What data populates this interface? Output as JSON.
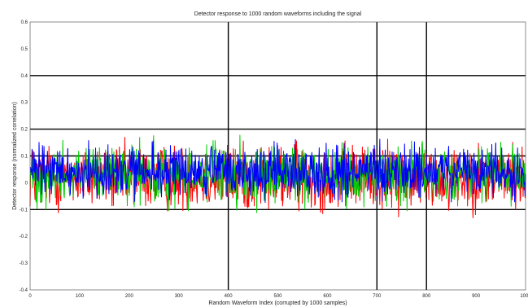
{
  "chart_data": {
    "type": "line",
    "title": "Detector response to 1000 random waveforms including the signal",
    "xlabel": "Random Waveform Index (corrupted by 1000 samples)",
    "ylabel": "Detector response (normalized correlation)",
    "xlim": [
      0,
      1000
    ],
    "ylim": [
      -0.4,
      0.6
    ],
    "x_ticks": [
      0,
      100,
      200,
      300,
      400,
      500,
      600,
      700,
      800,
      900,
      1000
    ],
    "x_tick_labels": [
      "0",
      "100",
      "200",
      "300",
      "400",
      "500",
      "600",
      "700",
      "800",
      "900",
      "1000"
    ],
    "y_ticks": [
      -0.4,
      -0.3,
      -0.2,
      -0.1,
      0,
      0.1,
      0.2,
      0.3,
      0.4,
      0.5,
      0.6
    ],
    "y_tick_labels": [
      "-0.4",
      "-0.3",
      "-0.2",
      "-0.1",
      "0",
      "0.1",
      "0.2",
      "0.3",
      "0.4",
      "0.5",
      "0.6"
    ],
    "grid": {
      "h_lines": [
        -0.1,
        0.1,
        0.2,
        0.4
      ],
      "v_lines": [
        400,
        700,
        800
      ]
    },
    "series": [
      {
        "color": "#ff0000",
        "mean": 0.02,
        "spread": 0.11,
        "points": 1000
      },
      {
        "color": "#00cc00",
        "mean": 0.03,
        "spread": 0.1,
        "points": 1000
      },
      {
        "color": "#0000ff",
        "mean": 0.04,
        "spread": 0.09,
        "points": 1000
      }
    ]
  }
}
